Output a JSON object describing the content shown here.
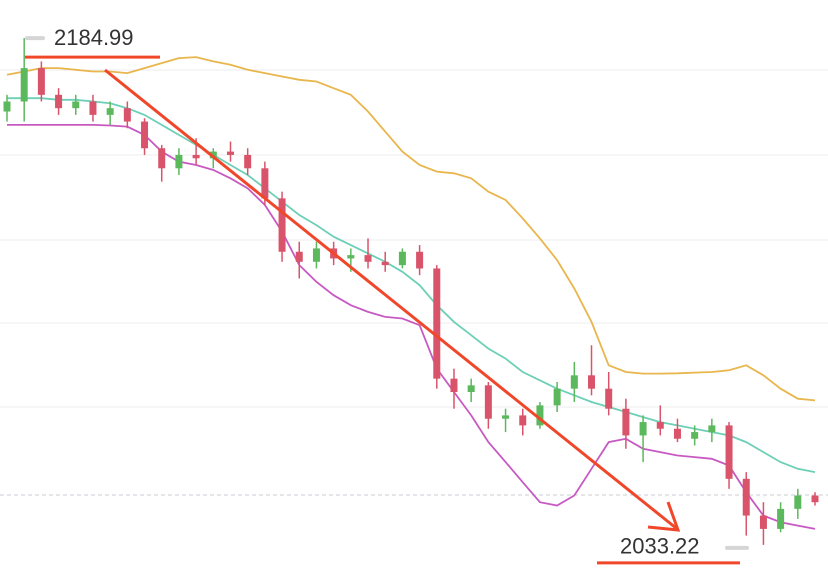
{
  "chart_data": {
    "type": "candlestick",
    "ylim": [
      2022.7,
      2196.4
    ],
    "up_color": "#5cb85c",
    "down_color": "#d9546a",
    "candles": {
      "open": [
        2163,
        2166,
        2176,
        2168,
        2164,
        2166,
        2162,
        2164,
        2160,
        2152,
        2146,
        2150,
        2149,
        2151,
        2150,
        2146,
        2137,
        2121,
        2118,
        2122,
        2119,
        2120,
        2118,
        2117,
        2121,
        2116,
        2083,
        2079,
        2081,
        2071,
        2072,
        2069,
        2075,
        2080,
        2084,
        2080,
        2074,
        2066,
        2070,
        2068,
        2065,
        2067,
        2069,
        2053,
        2042,
        2038,
        2044,
        2048
      ],
      "high": [
        2168,
        2184.99,
        2178,
        2170,
        2168,
        2168,
        2166,
        2166,
        2161,
        2153,
        2152,
        2155,
        2152,
        2154,
        2152,
        2148,
        2139,
        2124,
        2124,
        2124,
        2122,
        2125,
        2121,
        2122,
        2123,
        2117,
        2086,
        2083,
        2082,
        2074,
        2074,
        2076,
        2082,
        2088,
        2093,
        2085,
        2077,
        2072,
        2075,
        2071,
        2069,
        2071,
        2070,
        2055,
        2046,
        2046,
        2050,
        2049
      ],
      "low": [
        2160,
        2160,
        2166,
        2162,
        2162,
        2160,
        2159,
        2158,
        2150,
        2142,
        2144,
        2147,
        2146,
        2148,
        2144,
        2135,
        2118,
        2113,
        2116,
        2117,
        2115,
        2116,
        2115,
        2116,
        2114,
        2080,
        2074,
        2076,
        2068,
        2067,
        2066,
        2068,
        2073,
        2076,
        2078,
        2072,
        2062,
        2058,
        2066,
        2064,
        2063,
        2064,
        2050,
        2036,
        2033.22,
        2037,
        2041,
        2045
      ],
      "close": [
        2166,
        2176,
        2168,
        2164,
        2166,
        2162,
        2164,
        2160,
        2152,
        2146,
        2150,
        2149,
        2151,
        2150,
        2146,
        2137,
        2121,
        2118,
        2122,
        2119,
        2120,
        2118,
        2117,
        2121,
        2116,
        2083,
        2079,
        2081,
        2071,
        2072,
        2069,
        2075,
        2080,
        2084,
        2080,
        2074,
        2066,
        2070,
        2068,
        2065,
        2067,
        2069,
        2053,
        2042,
        2038,
        2044,
        2048,
        2046
      ]
    },
    "bands": [
      {
        "color": "#e8b64c",
        "values": [
          2174,
          2175,
          2176,
          2176,
          2175.5,
          2175,
          2175,
          2174.5,
          2176,
          2177.5,
          2179,
          2179.3,
          2178,
          2177,
          2175.5,
          2174.5,
          2173.5,
          2172.5,
          2172,
          2170,
          2168,
          2163,
          2157,
          2151,
          2147,
          2145,
          2144.5,
          2143,
          2139,
          2136.5,
          2131,
          2125,
          2118.5,
          2110,
          2100,
          2087,
          2085,
          2084.5,
          2084.5,
          2084.6,
          2084.8,
          2085,
          2085.5,
          2087,
          2084,
          2080,
          2077,
          2076.5
        ]
      },
      {
        "color": "#6dcfb6",
        "values": [
          2167,
          2167,
          2167,
          2166.5,
          2166.5,
          2166,
          2165.5,
          2164,
          2162,
          2159,
          2156,
          2153,
          2150,
          2147,
          2144,
          2140,
          2136,
          2132,
          2129,
          2125.5,
          2123,
          2120.5,
          2118,
          2115,
          2111,
          2105,
          2100,
          2096,
          2092,
          2089,
          2085,
          2082.5,
          2080,
          2078,
          2076,
          2074.5,
          2073,
          2071.5,
          2070,
          2069,
          2068,
          2067,
          2066,
          2064,
          2061,
          2058,
          2056,
          2055
        ]
      },
      {
        "color": "#c75ac2",
        "values": [
          2159,
          2159,
          2159,
          2159,
          2159,
          2159,
          2158.8,
          2158.5,
          2156,
          2151,
          2148,
          2147,
          2145.5,
          2143,
          2140,
          2135,
          2127,
          2117,
          2112,
          2108,
          2105,
          2103,
          2101.5,
          2101,
          2099,
          2086,
          2079,
          2072,
          2064,
          2058,
          2052,
          2046,
          2045,
          2048,
          2056,
          2064,
          2065,
          2062,
          2061,
          2060,
          2059.5,
          2059,
          2057,
          2049,
          2042,
          2040,
          2039,
          2038
        ]
      }
    ],
    "high_label": 2184.99,
    "low_label": 2033.22
  }
}
